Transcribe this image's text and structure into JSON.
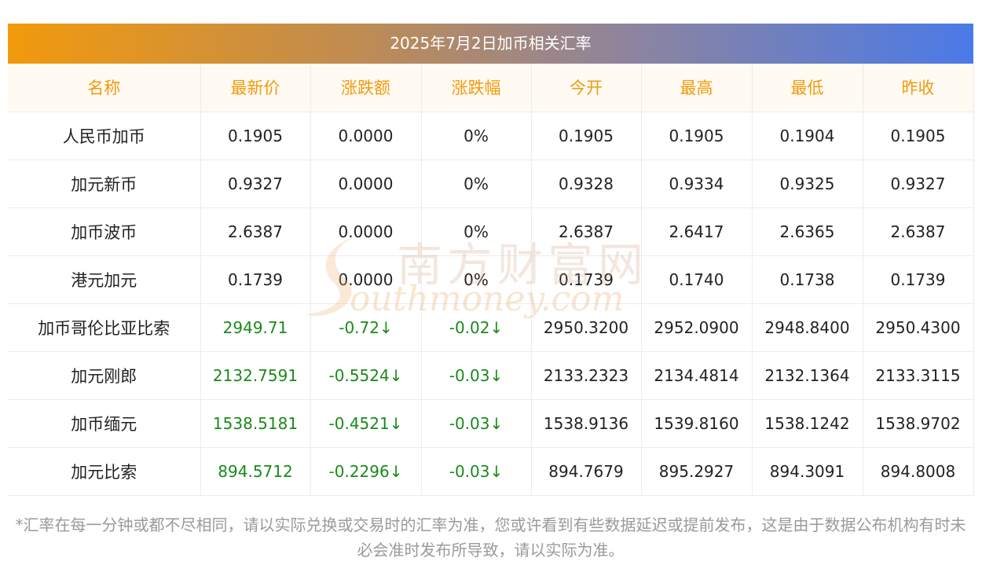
{
  "title": "2025年7月2日加币相关汇率",
  "columns": [
    "名称",
    "最新价",
    "涨跌额",
    "涨跌幅",
    "今开",
    "最高",
    "最低",
    "昨收"
  ],
  "rows": [
    [
      "人民币加币",
      "0.1905",
      "0.0000",
      "0%",
      "0.1905",
      "0.1905",
      "0.1904",
      "0.1905"
    ],
    [
      "加元新币",
      "0.9327",
      "0.0000",
      "0%",
      "0.9328",
      "0.9334",
      "0.9325",
      "0.9327"
    ],
    [
      "加币波币",
      "2.6387",
      "0.0000",
      "0%",
      "2.6387",
      "2.6417",
      "2.6365",
      "2.6387"
    ],
    [
      "港元加元",
      "0.1739",
      "0.0000",
      "0%",
      "0.1739",
      "0.1740",
      "0.1738",
      "0.1739"
    ],
    [
      "加币哥伦比亚比索",
      "2949.71",
      "-0.72↓",
      "-0.02↓",
      "2950.3200",
      "2952.0900",
      "2948.8400",
      "2950.4300"
    ],
    [
      "加元刚郎",
      "2132.7591",
      "-0.5524↓",
      "-0.03↓",
      "2133.2323",
      "2134.4814",
      "2132.1364",
      "2133.3115"
    ],
    [
      "加币缅元",
      "1538.5181",
      "-0.4521↓",
      "-0.03↓",
      "1538.9136",
      "1539.8160",
      "1538.1242",
      "1538.9702"
    ],
    [
      "加元比索",
      "894.5712",
      "-0.2296↓",
      "-0.03↓",
      "894.7679",
      "895.2927",
      "894.3091",
      "894.8008"
    ]
  ],
  "down_rows": [
    4,
    5,
    6,
    7
  ],
  "note": "*汇率在每一分钟或都不尽相同，请以实际兑换或交易时的汇率为准，您或许看到有些数据延迟或提前发布，这是由于数据公布机构有时未必会准时发布所导致，请以实际为准。",
  "watermark": {
    "cn": "南方财富网",
    "en": "outhmoney.com"
  },
  "colors": {
    "header_text": "#f29a0c",
    "down_green": "#1a8a1a",
    "header_bg": "#fffaf2"
  }
}
